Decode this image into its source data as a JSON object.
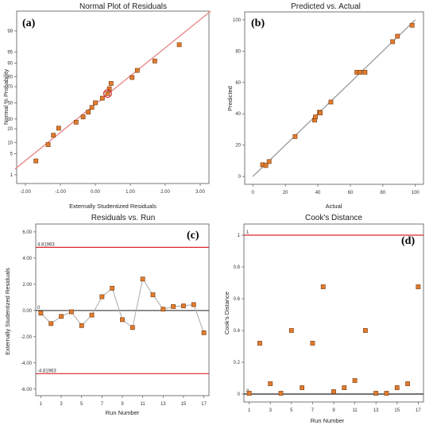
{
  "colors": {
    "marker_fill": "#e07b2e",
    "marker_stroke": "#7a3d10",
    "fit_line_red": "#e88a8a",
    "fit_line_gray": "#9a9a9a",
    "limit_line": "#d9272e",
    "connect_line": "#aaaaaa",
    "frame": "#555555"
  },
  "chart_data": [
    {
      "type": "scatter",
      "tag": "(a)",
      "title": "Normal Plot of Residuals",
      "xlabel": "Externally Studentized Residuals",
      "ylabel": "Normal % Probability",
      "xlim": [
        -2.25,
        3.25
      ],
      "y_scale": "probability",
      "x_ticks": [
        -2.0,
        -1.0,
        0.0,
        1.0,
        2.0,
        3.0
      ],
      "x_tick_labels": [
        "-2.00",
        "-1.00",
        "0.00",
        "1.00",
        "2.00",
        "3.00"
      ],
      "y_ticks": [
        1,
        5,
        10,
        20,
        30,
        50,
        70,
        80,
        90,
        95,
        99
      ],
      "y_tick_labels": [
        "1",
        "5",
        "10",
        "20",
        "30",
        "50",
        "70",
        "80",
        "90",
        "95",
        "99"
      ],
      "reference_line": {
        "x": [
          -2.3,
          3.3
        ],
        "y": [
          1.6,
          99.85
        ]
      },
      "points": [
        {
          "x": -1.7,
          "y": 3
        },
        {
          "x": -1.35,
          "y": 8.8
        },
        {
          "x": -1.2,
          "y": 14.7
        },
        {
          "x": -1.05,
          "y": 20.6
        },
        {
          "x": -0.55,
          "y": 26.5
        },
        {
          "x": -0.35,
          "y": 32.4
        },
        {
          "x": -0.2,
          "y": 38.2
        },
        {
          "x": -0.1,
          "y": 44.1
        },
        {
          "x": 0.0,
          "y": 50
        },
        {
          "x": 0.2,
          "y": 55.9
        },
        {
          "x": 0.35,
          "y": 61.8
        },
        {
          "x": 0.4,
          "y": 67.6
        },
        {
          "x": 0.45,
          "y": 73.5
        },
        {
          "x": 1.05,
          "y": 79.4
        },
        {
          "x": 1.2,
          "y": 85.3
        },
        {
          "x": 1.7,
          "y": 91.2
        },
        {
          "x": 2.4,
          "y": 97
        }
      ],
      "highlight": {
        "x": 0.35,
        "y": 61.8
      }
    },
    {
      "type": "scatter",
      "tag": "(b)",
      "title": "Predicted vs. Actual",
      "xlabel": "Actual",
      "ylabel": "Predicted",
      "xlim": [
        -5,
        105
      ],
      "ylim": [
        -5,
        105
      ],
      "x_ticks": [
        0,
        20,
        40,
        60,
        80,
        100
      ],
      "y_ticks": [
        0,
        20,
        40,
        60,
        80,
        100
      ],
      "reference_line": {
        "x": [
          0,
          100
        ],
        "y": [
          0,
          100
        ]
      },
      "points": [
        {
          "x": 6,
          "y": 7.5
        },
        {
          "x": 8,
          "y": 7
        },
        {
          "x": 10,
          "y": 9.5
        },
        {
          "x": 26,
          "y": 25.5
        },
        {
          "x": 38,
          "y": 36
        },
        {
          "x": 38.5,
          "y": 38
        },
        {
          "x": 41,
          "y": 41
        },
        {
          "x": 41.5,
          "y": 40.5
        },
        {
          "x": 48,
          "y": 47.5
        },
        {
          "x": 64,
          "y": 66.5
        },
        {
          "x": 66,
          "y": 66.5
        },
        {
          "x": 69,
          "y": 66.5
        },
        {
          "x": 86,
          "y": 86
        },
        {
          "x": 89,
          "y": 89.5
        },
        {
          "x": 98,
          "y": 96.5
        }
      ]
    },
    {
      "type": "line",
      "tag": "(c)",
      "title": "Residuals vs. Run",
      "xlabel": "Run Number",
      "ylabel": "Externally Studentized Residuals",
      "xlim": [
        0.5,
        17.5
      ],
      "ylim": [
        -6.5,
        6.6
      ],
      "x_ticks": [
        1,
        3,
        5,
        7,
        9,
        11,
        13,
        15,
        17
      ],
      "y_ticks": [
        -6,
        -4,
        -2,
        0,
        2,
        4,
        6
      ],
      "y_tick_labels": [
        "-6.00",
        "-4.00",
        "-2.00",
        "0.00",
        "2.00",
        "4.00",
        "6.00"
      ],
      "limit_lines": [
        {
          "y": 4.81963,
          "label": "4.81963"
        },
        {
          "y": -4.81963,
          "label": "-4.81963"
        }
      ],
      "zero_line": {
        "y": 0,
        "label": "0"
      },
      "x": [
        1,
        2,
        3,
        4,
        5,
        6,
        7,
        8,
        9,
        10,
        11,
        12,
        13,
        14,
        15,
        16,
        17
      ],
      "values": [
        -0.2,
        -1.0,
        -0.45,
        -0.1,
        -1.15,
        -0.35,
        1.05,
        1.7,
        -0.7,
        -1.3,
        2.4,
        1.2,
        0.1,
        0.3,
        0.35,
        0.45,
        -1.7
      ]
    },
    {
      "type": "scatter",
      "tag": "(d)",
      "title": "Cook's Distance",
      "xlabel": "Run Number",
      "ylabel": "Cook's Distance",
      "xlim": [
        0.5,
        17.5
      ],
      "ylim": [
        -0.05,
        1.07
      ],
      "x_ticks": [
        1,
        3,
        5,
        7,
        9,
        11,
        13,
        15,
        17
      ],
      "y_ticks": [
        0,
        0.2,
        0.4,
        0.6,
        0.8,
        1
      ],
      "y_tick_labels": [
        "0",
        "0.2",
        "0.4",
        "0.6",
        "0.8",
        "1"
      ],
      "limit_lines": [
        {
          "y": 1,
          "label": "1"
        },
        {
          "y": 0,
          "label": "0"
        }
      ],
      "x": [
        1,
        2,
        3,
        4,
        5,
        6,
        7,
        8,
        9,
        10,
        11,
        12,
        13,
        14,
        15,
        16,
        17
      ],
      "values": [
        0.005,
        0.32,
        0.065,
        0.005,
        0.4,
        0.04,
        0.32,
        0.675,
        0.015,
        0.04,
        0.085,
        0.4,
        0.005,
        0.005,
        0.04,
        0.065,
        0.675
      ]
    }
  ]
}
